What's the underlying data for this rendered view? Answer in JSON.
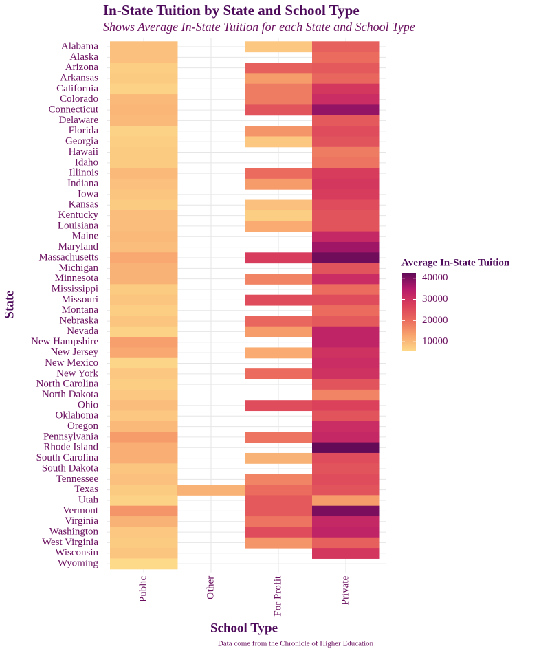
{
  "chart_data": {
    "type": "heatmap",
    "title": "In-State Tuition by State and School Type",
    "subtitle": "Shows Average In-State Tuition for each State and School Type",
    "x_label": "School Type",
    "y_label": "State",
    "caption": "Data come from the Chronicle of Higher Education",
    "legend_title": "Average In-State Tuition",
    "columns": [
      "Public",
      "Other",
      "For Profit",
      "Private"
    ],
    "rows": [
      "Alabama",
      "Alaska",
      "Arizona",
      "Arkansas",
      "California",
      "Colorado",
      "Connecticut",
      "Delaware",
      "Florida",
      "Georgia",
      "Hawaii",
      "Idaho",
      "Illinois",
      "Indiana",
      "Iowa",
      "Kansas",
      "Kentucky",
      "Louisiana",
      "Maine",
      "Maryland",
      "Massachusetts",
      "Michigan",
      "Minnesota",
      "Mississippi",
      "Missouri",
      "Montana",
      "Nebraska",
      "Nevada",
      "New Hampshire",
      "New Jersey",
      "New Mexico",
      "New York",
      "North Carolina",
      "North Dakota",
      "Ohio",
      "Oklahoma",
      "Oregon",
      "Pennsylvania",
      "Rhode Island",
      "South Carolina",
      "South Dakota",
      "Tennessee",
      "Texas",
      "Utah",
      "Vermont",
      "Virginia",
      "Washington",
      "West Virginia",
      "Wisconsin",
      "Wyoming"
    ],
    "values": [
      [
        9000,
        null,
        8000,
        22000
      ],
      [
        9000,
        null,
        null,
        20000
      ],
      [
        7000,
        null,
        22000,
        23000
      ],
      [
        7500,
        null,
        14000,
        21000
      ],
      [
        6500,
        null,
        18000,
        29000
      ],
      [
        10000,
        null,
        18000,
        31000
      ],
      [
        10500,
        null,
        24000,
        38000
      ],
      [
        10000,
        null,
        null,
        23000
      ],
      [
        6500,
        null,
        15000,
        25000
      ],
      [
        7000,
        null,
        8000,
        24000
      ],
      [
        7500,
        null,
        null,
        18000
      ],
      [
        7500,
        null,
        null,
        19000
      ],
      [
        10000,
        null,
        20000,
        28000
      ],
      [
        9000,
        null,
        14000,
        29000
      ],
      [
        8500,
        null,
        null,
        28000
      ],
      [
        7500,
        null,
        9000,
        25000
      ],
      [
        9500,
        null,
        7000,
        24000
      ],
      [
        9500,
        null,
        12000,
        24000
      ],
      [
        10000,
        null,
        null,
        32000
      ],
      [
        9500,
        null,
        null,
        37000
      ],
      [
        12500,
        null,
        28000,
        41000
      ],
      [
        11000,
        null,
        null,
        24000
      ],
      [
        11000,
        null,
        17000,
        31000
      ],
      [
        7500,
        null,
        null,
        20000
      ],
      [
        8500,
        null,
        25000,
        25000
      ],
      [
        7000,
        null,
        null,
        20000
      ],
      [
        8500,
        null,
        21000,
        23000
      ],
      [
        6500,
        null,
        14000,
        33000
      ],
      [
        13500,
        null,
        null,
        33000
      ],
      [
        12500,
        null,
        12000,
        30000
      ],
      [
        6000,
        null,
        null,
        31000
      ],
      [
        8000,
        null,
        20000,
        30000
      ],
      [
        7000,
        null,
        null,
        24000
      ],
      [
        8000,
        null,
        null,
        17000
      ],
      [
        9500,
        null,
        25000,
        27000
      ],
      [
        8000,
        null,
        null,
        24000
      ],
      [
        10000,
        null,
        null,
        31000
      ],
      [
        14000,
        null,
        19000,
        32000
      ],
      [
        11500,
        null,
        null,
        42000
      ],
      [
        11500,
        null,
        11000,
        25000
      ],
      [
        8500,
        null,
        null,
        24000
      ],
      [
        9000,
        null,
        17000,
        25000
      ],
      [
        7500,
        11000,
        20000,
        24000
      ],
      [
        6500,
        null,
        23000,
        14000
      ],
      [
        15000,
        null,
        23000,
        40000
      ],
      [
        11000,
        null,
        19000,
        32000
      ],
      [
        8000,
        null,
        25000,
        33000
      ],
      [
        7500,
        null,
        15000,
        22000
      ],
      [
        8500,
        null,
        null,
        29000
      ],
      [
        5500,
        null,
        null,
        null
      ]
    ],
    "zlim": [
      5500,
      42500
    ],
    "zticks": [
      10000,
      20000,
      30000,
      40000
    ],
    "colorscale": [
      "#FDD98A",
      "#F8A56E",
      "#EA6A5D",
      "#D93D5B",
      "#B51A6C",
      "#5E0A57"
    ],
    "grid": true
  }
}
